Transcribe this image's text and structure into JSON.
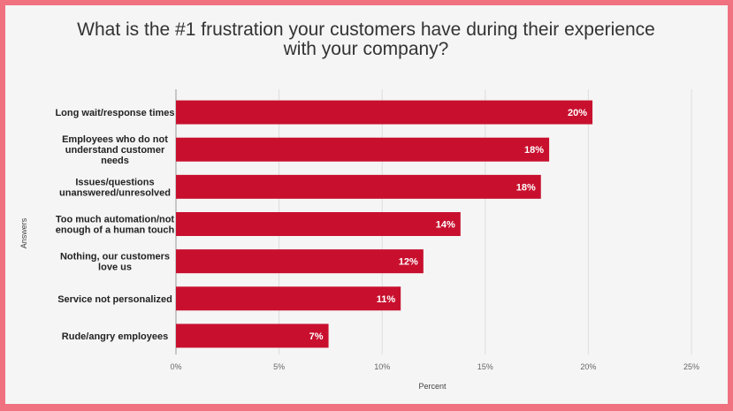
{
  "chart_data": {
    "type": "bar",
    "orientation": "horizontal",
    "title_lines": [
      "What is the #1 frustration your customers have during their experience",
      "with your company?"
    ],
    "xlabel": "Percent",
    "ylabel": "Answers",
    "xlim": [
      0,
      25
    ],
    "x_ticks": [
      "0%",
      "5%",
      "10%",
      "15%",
      "20%",
      "25%"
    ],
    "grid": true,
    "bar_color": "#c8102e",
    "categories": [
      [
        "Long wait/response times"
      ],
      [
        "Employees who do not",
        "understand customer",
        "needs"
      ],
      [
        "Issues/questions",
        "unanswered/unresolved"
      ],
      [
        "Too much automation/not",
        "enough of a human touch"
      ],
      [
        "Nothing, our customers",
        "love us"
      ],
      [
        "Service not personalized"
      ],
      [
        "Rude/angry employees"
      ]
    ],
    "values": [
      20.2,
      18.1,
      17.7,
      13.8,
      12.0,
      10.9,
      7.4
    ],
    "value_labels": [
      "20%",
      "18%",
      "18%",
      "14%",
      "12%",
      "11%",
      "7%"
    ]
  }
}
